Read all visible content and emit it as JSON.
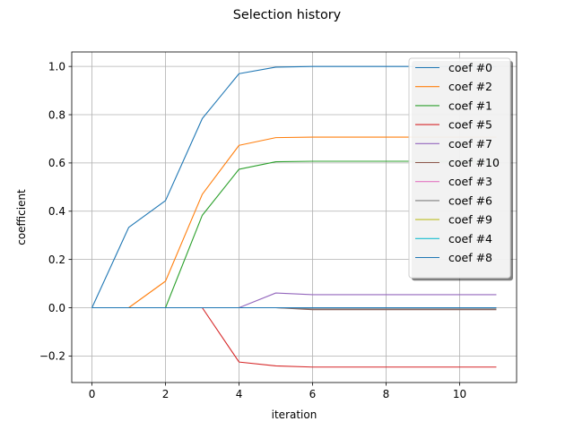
{
  "chart_data": {
    "type": "line",
    "title": "Selection history",
    "xlabel": "iteration",
    "ylabel": "coefficient",
    "xlim": [
      -0.55,
      11.55
    ],
    "ylim": [
      -0.31,
      1.06
    ],
    "xticks": [
      0,
      2,
      4,
      6,
      8,
      10
    ],
    "xtick_labels": [
      "0",
      "2",
      "4",
      "6",
      "8",
      "10"
    ],
    "yticks": [
      -0.2,
      0.0,
      0.2,
      0.4,
      0.6,
      0.8,
      1.0
    ],
    "ytick_labels": [
      "−0.2",
      "0.0",
      "0.2",
      "0.4",
      "0.6",
      "0.8",
      "1.0"
    ],
    "grid": true,
    "legend_position": "upper-right",
    "x": [
      0,
      1,
      2,
      3,
      4,
      5,
      6,
      7,
      8,
      9,
      10,
      11
    ],
    "series": [
      {
        "name": "coef #0",
        "color": "#1f77b4",
        "values": [
          0,
          0.333,
          0.444,
          0.784,
          0.97,
          0.997,
          1.0,
          1.0,
          1.0,
          1.0,
          1.0,
          1.0
        ]
      },
      {
        "name": "coef #2",
        "color": "#ff7f0e",
        "values": [
          0,
          0,
          0.11,
          0.47,
          0.673,
          0.705,
          0.707,
          0.707,
          0.707,
          0.707,
          0.707,
          0.707
        ]
      },
      {
        "name": "coef #1",
        "color": "#2ca02c",
        "values": [
          0,
          0,
          0,
          0.383,
          0.574,
          0.605,
          0.607,
          0.607,
          0.607,
          0.607,
          0.607,
          0.607
        ]
      },
      {
        "name": "coef #5",
        "color": "#d62728",
        "values": [
          0,
          0,
          0,
          0,
          -0.225,
          -0.241,
          -0.246,
          -0.246,
          -0.246,
          -0.246,
          -0.246,
          -0.246
        ]
      },
      {
        "name": "coef #7",
        "color": "#9467bd",
        "values": [
          0,
          0,
          0,
          0,
          0,
          0.061,
          0.054,
          0.054,
          0.054,
          0.054,
          0.054,
          0.054
        ]
      },
      {
        "name": "coef #10",
        "color": "#8c564b",
        "values": [
          0,
          0,
          0,
          0,
          0,
          0,
          -0.008,
          -0.008,
          -0.008,
          -0.008,
          -0.008,
          -0.008
        ]
      },
      {
        "name": "coef #3",
        "color": "#e377c2",
        "values": [
          0,
          0,
          0,
          0,
          0,
          0,
          0,
          0,
          0,
          0,
          0,
          0
        ]
      },
      {
        "name": "coef #6",
        "color": "#7f7f7f",
        "values": [
          0,
          0,
          0,
          0,
          0,
          0,
          -0.005,
          -0.005,
          -0.005,
          -0.005,
          -0.005,
          -0.005
        ]
      },
      {
        "name": "coef #9",
        "color": "#bcbd22",
        "values": [
          0,
          0,
          0,
          0,
          0,
          0,
          0,
          0,
          0,
          0,
          0,
          0
        ]
      },
      {
        "name": "coef #4",
        "color": "#17becf",
        "values": [
          0,
          0,
          0,
          0,
          0,
          0,
          0,
          0,
          0,
          0,
          0,
          0
        ]
      },
      {
        "name": "coef #8",
        "color": "#1f77b4",
        "values": [
          0,
          0,
          0,
          0,
          0,
          0,
          0,
          0,
          0,
          0,
          0,
          0
        ]
      }
    ]
  }
}
